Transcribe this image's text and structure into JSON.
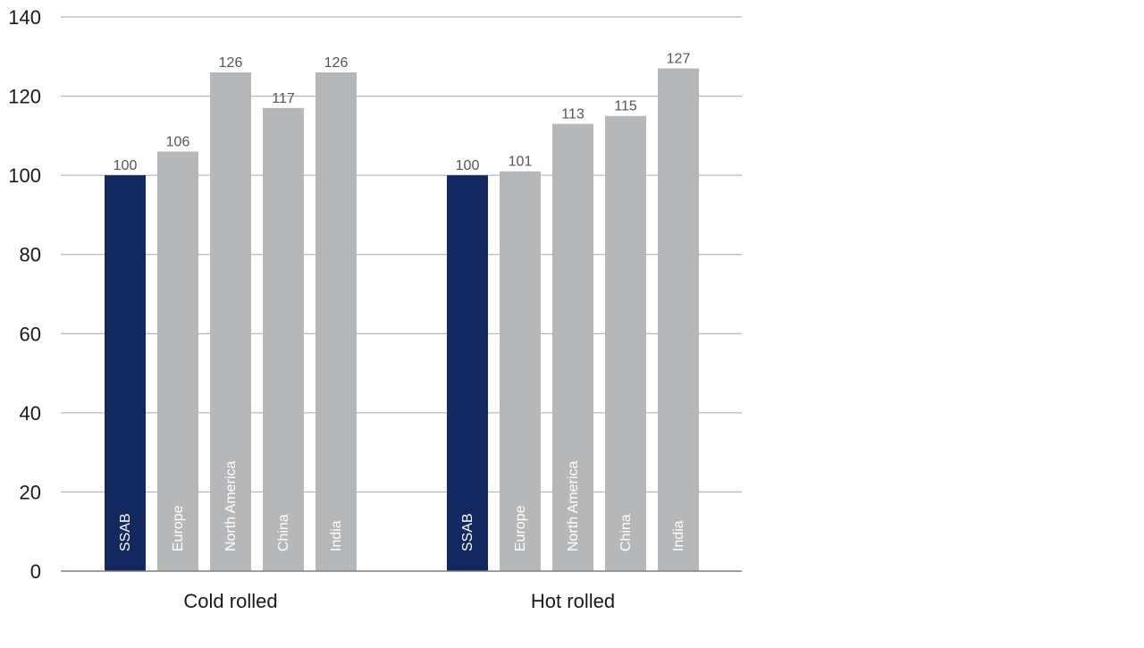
{
  "chart_data": {
    "type": "bar",
    "ylim": [
      0,
      140
    ],
    "yticks": [
      "0",
      "20",
      "40",
      "60",
      "80",
      "100",
      "120",
      "140"
    ],
    "grid": true,
    "groups": [
      {
        "label": "Cold rolled",
        "bars": [
          {
            "category": "SSAB",
            "value": 100,
            "value_label": "100",
            "color": "#13285e"
          },
          {
            "category": "Europe",
            "value": 106,
            "value_label": "106",
            "color": "#b6b7b9"
          },
          {
            "category": "North America",
            "value": 126,
            "value_label": "126",
            "color": "#b6b7b9"
          },
          {
            "category": "China",
            "value": 117,
            "value_label": "117",
            "color": "#b6b7b9"
          },
          {
            "category": "India",
            "value": 126,
            "value_label": "126",
            "color": "#b6b7b9"
          }
        ]
      },
      {
        "label": "Hot rolled",
        "bars": [
          {
            "category": "SSAB",
            "value": 100,
            "value_label": "100",
            "color": "#13285e"
          },
          {
            "category": "Europe",
            "value": 101,
            "value_label": "101",
            "color": "#b6b7b9"
          },
          {
            "category": "North America",
            "value": 113,
            "value_label": "113",
            "color": "#b6b7b9"
          },
          {
            "category": "China",
            "value": 115,
            "value_label": "115",
            "color": "#b6b7b9"
          },
          {
            "category": "India",
            "value": 127,
            "value_label": "127",
            "color": "#b6b7b9"
          }
        ]
      }
    ],
    "colors": {
      "highlight": "#13285e",
      "bar": "#b6b7b9",
      "grid": "#a9a9a9",
      "axis": "#7f7f7f",
      "text": "#1a1a1a",
      "value_label": "#555555",
      "bar_label": "#ffffff"
    }
  }
}
